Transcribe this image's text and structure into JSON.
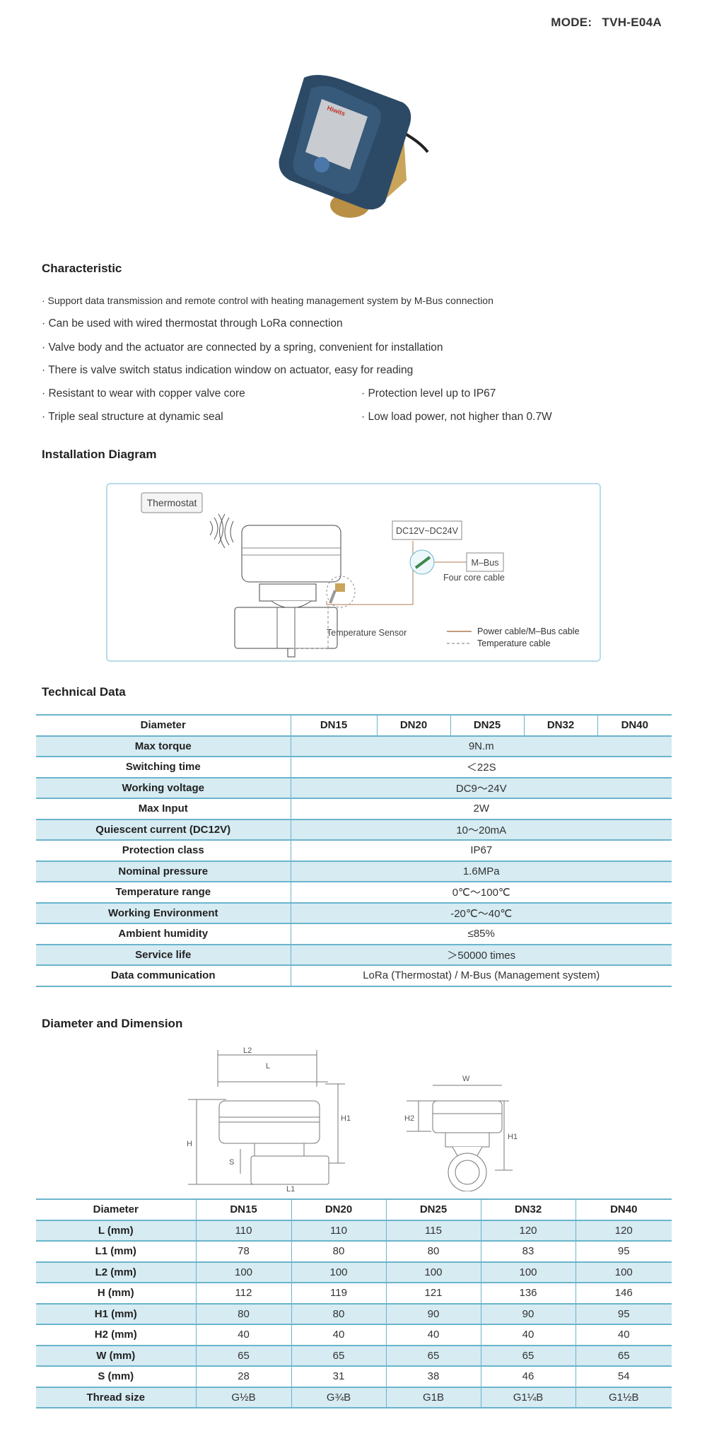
{
  "header": {
    "mode_label": "MODE:",
    "model": "TVH-E04A"
  },
  "product_image": {
    "brand_logo": "Hiwits",
    "icon": "valve-actuator-photo"
  },
  "characteristic": {
    "title": "Characteristic",
    "items": [
      "· Support data transmission and remote control with heating management system by M-Bus connection",
      "· Can be used with wired thermostat through LoRa connection",
      "· Valve body and the actuator are connected by a spring, convenient for installation",
      "· There is valve switch status indication window on actuator, easy for reading",
      "· Resistant to wear with copper valve core",
      "· Protection level up to IP67",
      "· Triple seal structure at dynamic seal",
      "· Low load power, not higher than 0.7W"
    ]
  },
  "installation": {
    "title": "Installation Diagram",
    "thermostat": "Thermostat",
    "power": "DC12V~DC24V",
    "mbus": "M–Bus",
    "cable": "Four core cable",
    "sensor": "Temperature Sensor",
    "legend": [
      "Power cable/M–Bus cable",
      "Temperature cable"
    ],
    "colors": {
      "power_cable": "#b07a50",
      "box_border": "#b9dcea"
    }
  },
  "technical": {
    "title": "Technical Data",
    "header": [
      "Diameter",
      "DN15",
      "DN20",
      "DN25",
      "DN32",
      "DN40"
    ],
    "rows": [
      [
        "Max torque",
        "9N.m"
      ],
      [
        "Switching time",
        "＜22S"
      ],
      [
        "Working voltage",
        "DC9～24V"
      ],
      [
        "Max Input",
        "2W"
      ],
      [
        "Quiescent current (DC12V)",
        "10～20mA"
      ],
      [
        "Protection class",
        "IP67"
      ],
      [
        "Nominal pressure",
        "1.6MPa"
      ],
      [
        "Temperature range",
        "0℃～100℃"
      ],
      [
        "Working Environment",
        "-20℃～40℃"
      ],
      [
        "Ambient humidity",
        "≤85%"
      ],
      [
        "Service life",
        "＞50000 times"
      ],
      [
        "Data communication",
        "LoRa (Thermostat) / M-Bus (Management system)"
      ]
    ]
  },
  "dimension": {
    "title": "Diameter and Dimension",
    "drawing_labels": {
      "L2": "L2",
      "L": "L",
      "H": "H",
      "H1": "H1",
      "S": "S",
      "L1": "L1",
      "W": "W",
      "H2": "H2"
    },
    "header": [
      "Diameter",
      "DN15",
      "DN20",
      "DN25",
      "DN32",
      "DN40"
    ],
    "rows": [
      [
        "L (mm)",
        "110",
        "110",
        "115",
        "120",
        "120"
      ],
      [
        "L1 (mm)",
        "78",
        "80",
        "80",
        "83",
        "95"
      ],
      [
        "L2 (mm)",
        "100",
        "100",
        "100",
        "100",
        "100"
      ],
      [
        "H (mm)",
        "112",
        "119",
        "121",
        "136",
        "146"
      ],
      [
        "H1 (mm)",
        "80",
        "80",
        "90",
        "90",
        "95"
      ],
      [
        "H2 (mm)",
        "40",
        "40",
        "40",
        "40",
        "40"
      ],
      [
        "W (mm)",
        "65",
        "65",
        "65",
        "65",
        "65"
      ],
      [
        "S (mm)",
        "28",
        "31",
        "38",
        "46",
        "54"
      ],
      [
        "Thread size",
        "G½B",
        "G¾B",
        "G1B",
        "G1¼B",
        "G1½B"
      ]
    ]
  },
  "colors": {
    "table_line": "#6ab4cc",
    "table_alt_row": "#d6ebf2"
  }
}
